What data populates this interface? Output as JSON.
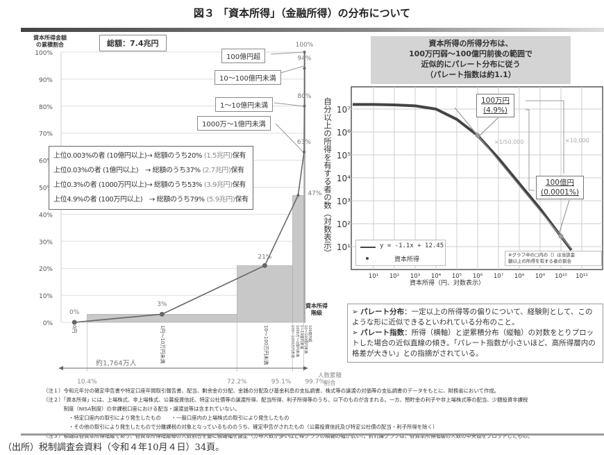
{
  "title": "図３ 「資本所得」（金融所得）の分布について",
  "left_chart": {
    "ylabel": [
      "資本所得金額",
      "の累積割合"
    ],
    "total_label": "総額：7.4兆円",
    "xlabel": [
      "人数累積",
      "割合"
    ],
    "class_label": [
      "資本所得",
      "階級"
    ],
    "people_label": "約1,764万人",
    "inset": [
      {
        "text": "上位0.003%の者 (10億円以上)→ 総額のうち20%",
        "amount": "(1.5兆円)",
        "suffix": "保有"
      },
      {
        "text": "上位0.03%の者 (1億円以上)　→ 総額のうち37%",
        "amount": "(2.7兆円)",
        "suffix": "保有"
      },
      {
        "text": "上位0.3%の者 (1000万円以上)→ 総額のうち53%",
        "amount": "(3.9兆円)",
        "suffix": "保有"
      },
      {
        "text": "上位4.9%の者 (100万円以上)　→ 総額のうち79%",
        "amount": "(5.9兆円)",
        "suffix": "保有"
      }
    ],
    "callouts": [
      "100億円超",
      "10～100億円未満",
      "1～10億円未満",
      "1000万～1億円未満"
    ]
  },
  "right_chart": {
    "title": [
      "資本所得の所得分布は、",
      "100万円弱～100億円前後の範囲で",
      "近似的にパレート分布に従う",
      "（パレート指数は約1.1）"
    ],
    "ylabel": "自分以上の所得を有する者の数（対数表示）",
    "xlabel": "資本所得（円、対数表示）",
    "legend_line": "y = -1.1x + 12.45",
    "legend_dot": "資本所得",
    "ann1": {
      "amount": "100万円",
      "share": "(4.9%)"
    },
    "ann2": {
      "amount": "100億円",
      "share": "(0.0001%)"
    },
    "mult1": "×1/50,000",
    "mult2": "×10,000",
    "note": [
      "※グラフ中の□内の（）は当該金",
      "額以上の所得を有する者の割合"
    ]
  },
  "explanation": [
    {
      "term": "パレート分布",
      "text": "：一定以上の所得等の偏りについて、経験則として、このような形に近似できるといわれている分布のこと。"
    },
    {
      "term": "パレート指数",
      "text": "：所得（横軸）と逆累積分布（縦軸）の対数をとりプロットした場合の近似直線の傾き。「パレート指数が小さいほど、高所得層内の格差が大きい」との指摘がされている。"
    }
  ],
  "notes": [
    "（注１）令和元年分の確定申告書や特定口座年間取引報告書、配当、剰余金の分配、金銭の分配及び基金利息の支払調書、株式等の譲渡の対価等の支払調書のデータをもとに、財務省において作成。",
    "（注２）「資本所得」には、上場株式、非上場株式、公募投資信託、特定公社債等の譲渡所得、配当所得、利子所得等のうち、以下のものが含まれる。一方、預貯金の利子や非上場株式等の配当、少額投資非課税",
    "　　　　制度（NISA制度）の非課税口座における配当・譲渡益等は含まれていない。",
    "　　　　　・特定口座内の取引により発生したもの　　・一般口座内の上場株式の取引により発生したもの",
    "　　　　　・その他の取引により発生したもので分離課税の対象となっているもののうち、確定申告がされたもの（公募投資信託及び特定公社債の配当・利子所得を除く）",
    "（注３）横軸は各資本所得階級であり、各資本所得階級毎の人数割合を基に横軸幅を設定（分布人数が多いほど棒グラフの横軸の幅が広い）。折れ線グラフは、各資本所得階級の人数の中央値をプロットしたもの。"
  ],
  "source": "（出所）税制調査会資料（令和４年10月４日）34頁。",
  "chart_data": [
    {
      "type": "bar",
      "title": "",
      "ylabel": "資本所得金額の累積割合",
      "xlabel": "人数累積割合",
      "ylim": [
        0,
        100
      ],
      "yticks": [
        "0%",
        "10%",
        "20%",
        "30%",
        "40%",
        "50%",
        "60%",
        "70%",
        "80%",
        "90%",
        "100%"
      ],
      "x_boundaries": [
        "10.4%",
        "72.2%",
        "95.1%",
        "99.7%"
      ],
      "categories": [
        "0円",
        "1円～10万円未満",
        "10～100万円未満",
        "100～1000万円未満",
        "1000万～1億円未満",
        "1～10億円未満",
        "10～100億円未満",
        "100億円超"
      ],
      "person_share_range": [
        [
          0,
          10.4
        ],
        [
          10.4,
          72.2
        ],
        [
          72.2,
          95.1
        ],
        [
          95.1,
          99.7
        ],
        [
          99.7,
          99.97
        ],
        [
          99.97,
          99.997
        ],
        [
          99.997,
          99.9999
        ],
        [
          99.9999,
          100
        ]
      ],
      "cumulative_share": [
        0,
        3,
        21,
        47,
        63,
        80,
        94,
        100
      ],
      "point_labels": [
        "0%",
        "3%",
        "21%",
        "47%",
        "63%",
        "80%",
        "94%",
        "100%"
      ],
      "bar_color": "#c8c8c8",
      "line_color": "#666666"
    },
    {
      "type": "line",
      "xscale": "log",
      "yscale": "log",
      "xlim": [
        1,
        300000000000.0
      ],
      "ylim": [
        1,
        100000000.0
      ],
      "grid": true,
      "legend": "bottom-left",
      "xticks": [
        "10¹",
        "10²",
        "10³",
        "10⁴",
        "10⁵",
        "10⁶",
        "10⁷",
        "10⁸",
        "10⁹",
        "10¹⁰",
        "10¹¹"
      ],
      "yticks": [
        "10¹",
        "10²",
        "10³",
        "10⁴",
        "10⁵",
        "10⁶",
        "10⁷"
      ],
      "series": [
        {
          "name": "資本所得",
          "log_x": [
            0,
            1,
            2,
            3,
            4,
            5,
            5.5,
            6,
            6.5,
            7,
            8,
            9,
            10,
            10.5
          ],
          "log_y": [
            7.2,
            7.2,
            7.18,
            7.14,
            7.0,
            6.55,
            6.2,
            5.85,
            5.35,
            4.85,
            3.75,
            2.65,
            1.45,
            0.85
          ]
        },
        {
          "name": "y = -1.1x + 12.45",
          "slope": -1.1,
          "intercept": 12.45,
          "log_x_range": [
            4.9,
            10.5
          ]
        }
      ],
      "highlight_points": [
        {
          "log_x": 6,
          "label": "100万円 (4.9%)"
        },
        {
          "log_x": 10,
          "label": "100億円 (0.0001%)"
        }
      ]
    }
  ]
}
